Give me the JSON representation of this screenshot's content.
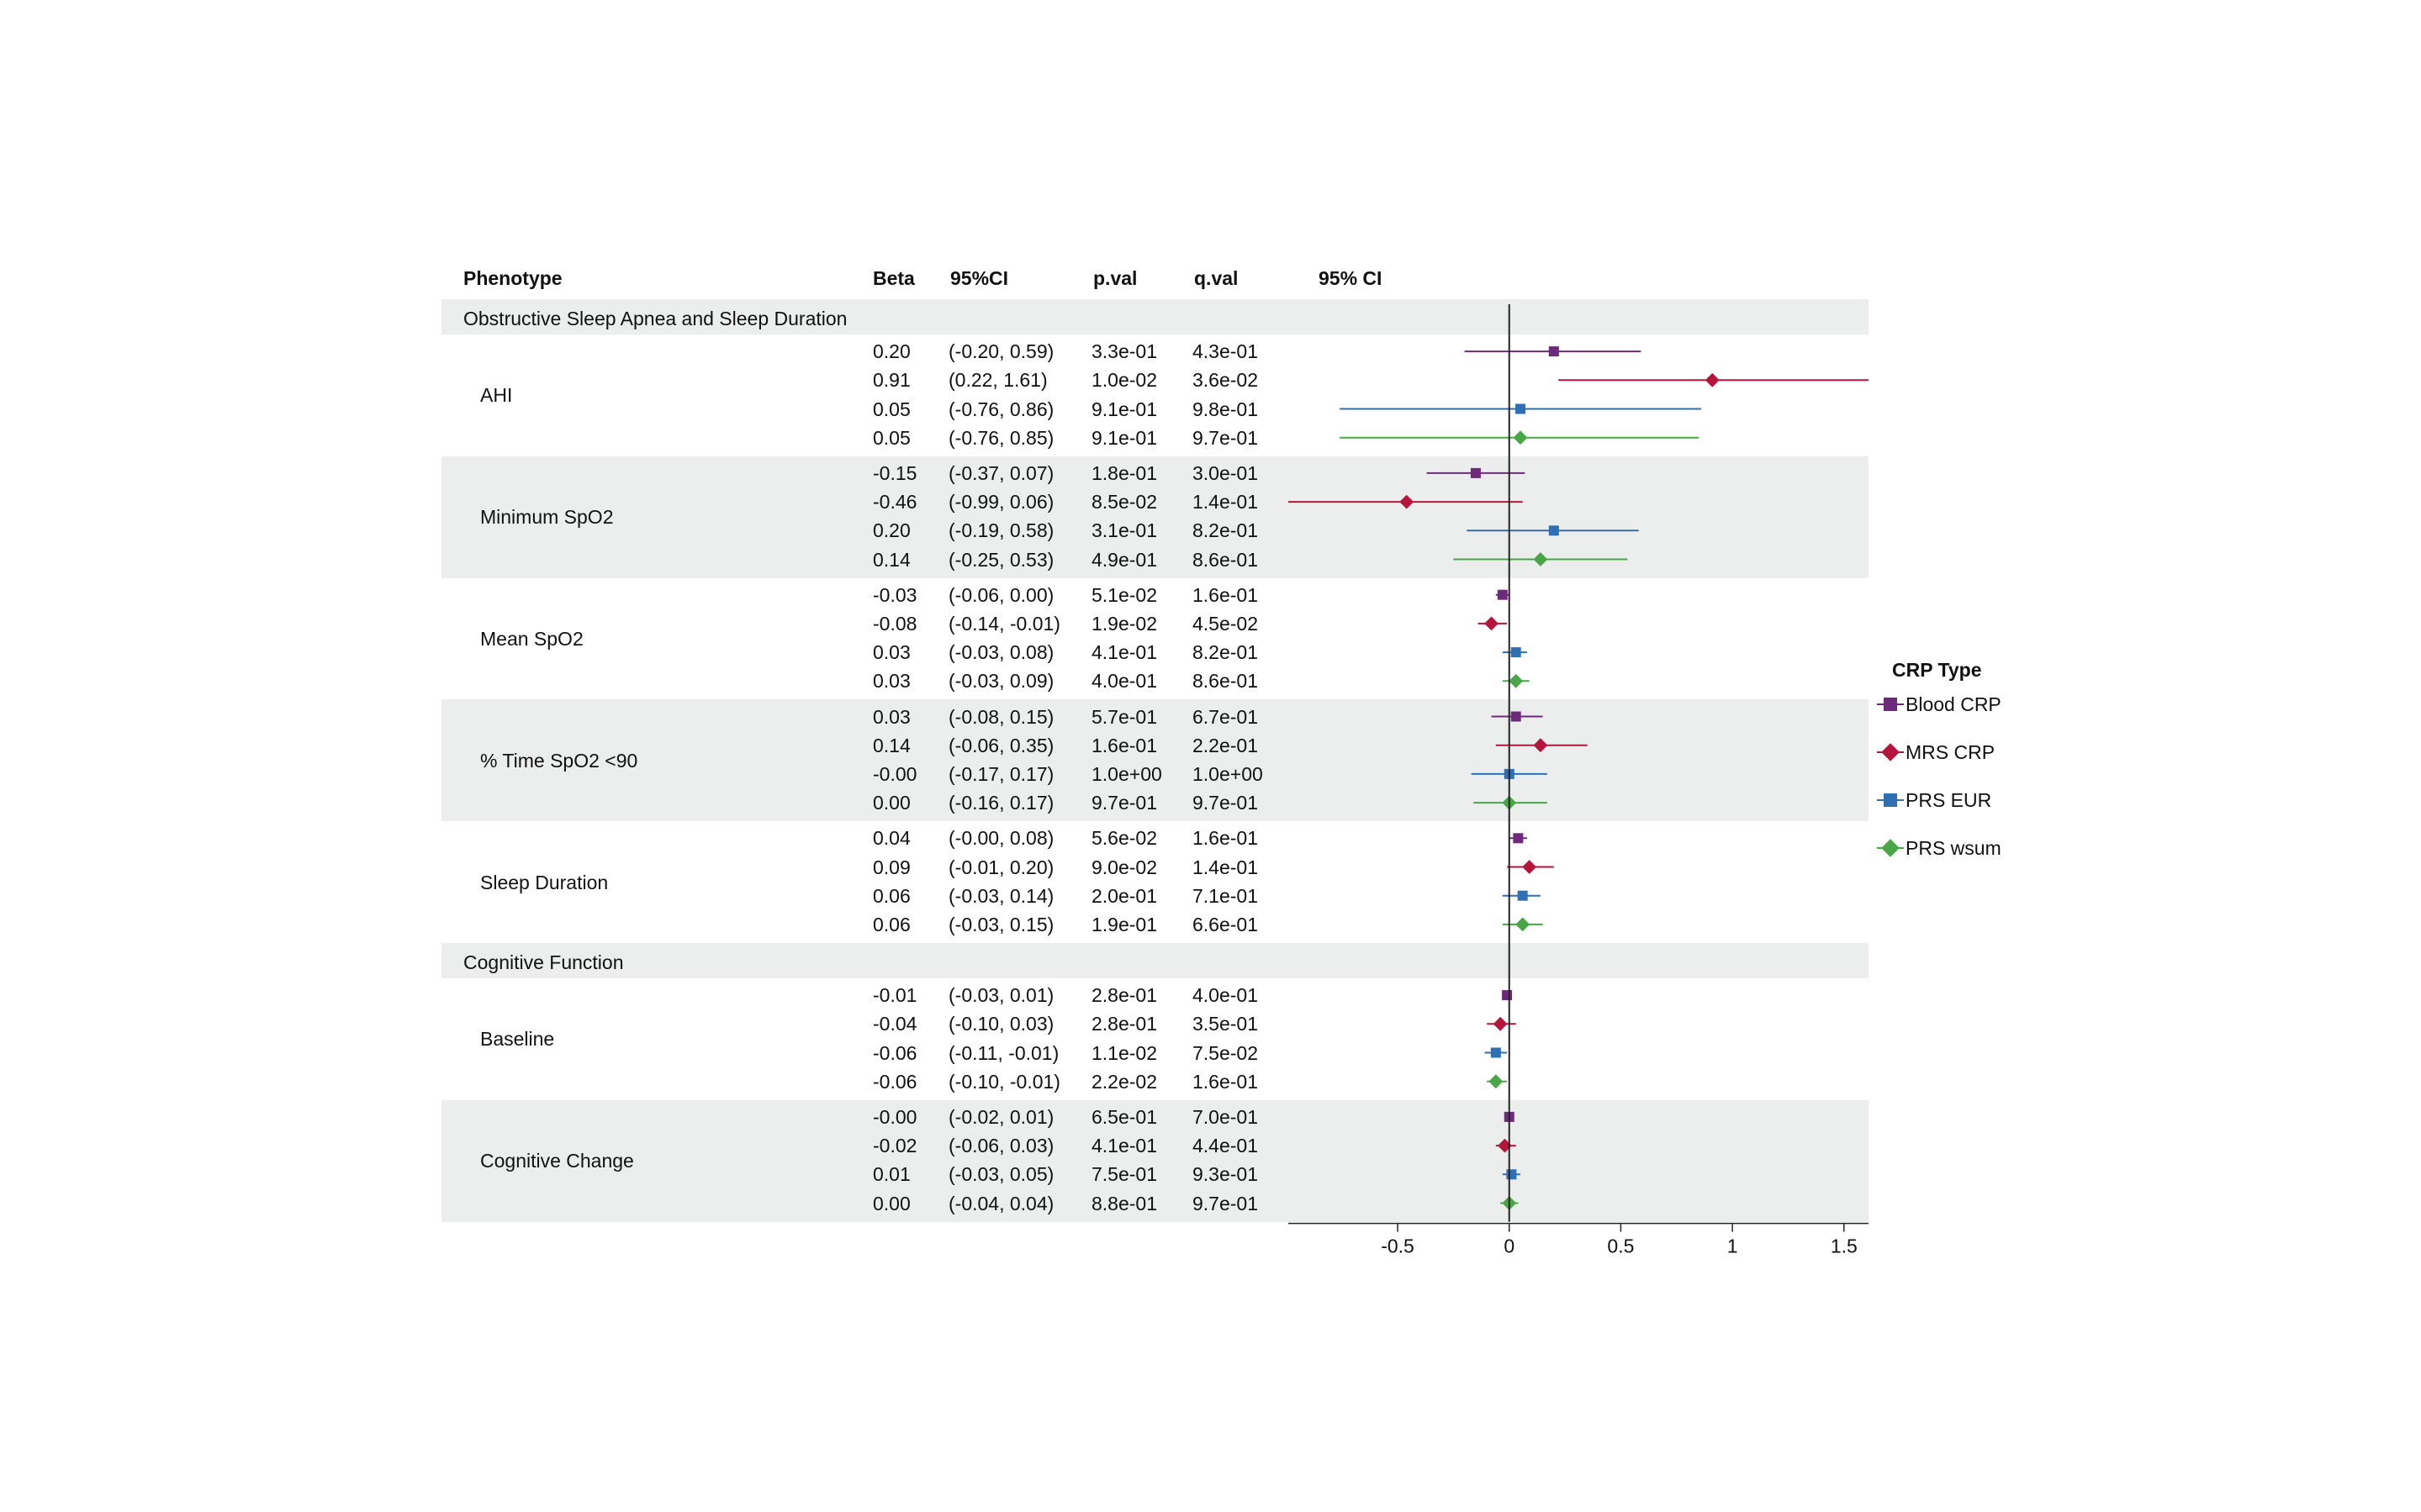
{
  "headers": {
    "phenotype": "Phenotype",
    "beta": "Beta",
    "ci": "95%CI",
    "pval": "p.val",
    "qval": "q.val",
    "plot": "95% CI"
  },
  "colors": {
    "band": "#eceeed",
    "Blood CRP": "#6e2a7a",
    "MRS CRP": "#b5143c",
    "PRS EUR": "#2f6fb3",
    "PRS wsum": "#4aa547"
  },
  "legend": {
    "title": "CRP Type",
    "items": [
      {
        "label": "Blood CRP",
        "marker": "square"
      },
      {
        "label": "MRS CRP",
        "marker": "diamond"
      },
      {
        "label": "PRS EUR",
        "marker": "square"
      },
      {
        "label": "PRS wsum",
        "marker": "diamond"
      }
    ]
  },
  "chart_data": {
    "type": "forest",
    "xlabel": "",
    "xlim": [
      -0.99,
      1.61
    ],
    "xticks": [
      "-0.5",
      "0",
      "0.5",
      "1",
      "1.5"
    ],
    "xtick_values": [
      -0.5,
      0,
      0.5,
      1,
      1.5
    ],
    "reference_line": 0,
    "sections": [
      {
        "title": "Obstructive Sleep Apnea and Sleep Duration",
        "groups": [
          {
            "name": "AHI",
            "rows": [
              {
                "type": "Blood CRP",
                "beta": "0.20",
                "ci": "(-0.20, 0.59)",
                "p": "3.3e-01",
                "q": "4.3e-01",
                "b": 0.2,
                "lo": -0.2,
                "hi": 0.59
              },
              {
                "type": "MRS CRP",
                "beta": "0.91",
                "ci": "(0.22, 1.61)",
                "p": "1.0e-02",
                "q": "3.6e-02",
                "b": 0.91,
                "lo": 0.22,
                "hi": 1.61
              },
              {
                "type": "PRS EUR",
                "beta": "0.05",
                "ci": "(-0.76, 0.86)",
                "p": "9.1e-01",
                "q": "9.8e-01",
                "b": 0.05,
                "lo": -0.76,
                "hi": 0.86
              },
              {
                "type": "PRS wsum",
                "beta": "0.05",
                "ci": "(-0.76, 0.85)",
                "p": "9.1e-01",
                "q": "9.7e-01",
                "b": 0.05,
                "lo": -0.76,
                "hi": 0.85
              }
            ]
          },
          {
            "name": "Minimum SpO2",
            "rows": [
              {
                "type": "Blood CRP",
                "beta": "-0.15",
                "ci": "(-0.37, 0.07)",
                "p": "1.8e-01",
                "q": "3.0e-01",
                "b": -0.15,
                "lo": -0.37,
                "hi": 0.07
              },
              {
                "type": "MRS CRP",
                "beta": "-0.46",
                "ci": "(-0.99, 0.06)",
                "p": "8.5e-02",
                "q": "1.4e-01",
                "b": -0.46,
                "lo": -0.99,
                "hi": 0.06
              },
              {
                "type": "PRS EUR",
                "beta": "0.20",
                "ci": "(-0.19, 0.58)",
                "p": "3.1e-01",
                "q": "8.2e-01",
                "b": 0.2,
                "lo": -0.19,
                "hi": 0.58
              },
              {
                "type": "PRS wsum",
                "beta": "0.14",
                "ci": "(-0.25, 0.53)",
                "p": "4.9e-01",
                "q": "8.6e-01",
                "b": 0.14,
                "lo": -0.25,
                "hi": 0.53
              }
            ]
          },
          {
            "name": "Mean SpO2",
            "rows": [
              {
                "type": "Blood CRP",
                "beta": "-0.03",
                "ci": "(-0.06, 0.00)",
                "p": "5.1e-02",
                "q": "1.6e-01",
                "b": -0.03,
                "lo": -0.06,
                "hi": 0.0
              },
              {
                "type": "MRS CRP",
                "beta": "-0.08",
                "ci": "(-0.14, -0.01)",
                "p": "1.9e-02",
                "q": "4.5e-02",
                "b": -0.08,
                "lo": -0.14,
                "hi": -0.01
              },
              {
                "type": "PRS EUR",
                "beta": "0.03",
                "ci": "(-0.03, 0.08)",
                "p": "4.1e-01",
                "q": "8.2e-01",
                "b": 0.03,
                "lo": -0.03,
                "hi": 0.08
              },
              {
                "type": "PRS wsum",
                "beta": "0.03",
                "ci": "(-0.03, 0.09)",
                "p": "4.0e-01",
                "q": "8.6e-01",
                "b": 0.03,
                "lo": -0.03,
                "hi": 0.09
              }
            ]
          },
          {
            "name": "% Time SpO2 <90",
            "rows": [
              {
                "type": "Blood CRP",
                "beta": "0.03",
                "ci": "(-0.08, 0.15)",
                "p": "5.7e-01",
                "q": "6.7e-01",
                "b": 0.03,
                "lo": -0.08,
                "hi": 0.15
              },
              {
                "type": "MRS CRP",
                "beta": "0.14",
                "ci": "(-0.06, 0.35)",
                "p": "1.6e-01",
                "q": "2.2e-01",
                "b": 0.14,
                "lo": -0.06,
                "hi": 0.35
              },
              {
                "type": "PRS EUR",
                "beta": "-0.00",
                "ci": "(-0.17, 0.17)",
                "p": "1.0e+00",
                "q": "1.0e+00",
                "b": 0.0,
                "lo": -0.17,
                "hi": 0.17
              },
              {
                "type": "PRS wsum",
                "beta": "0.00",
                "ci": "(-0.16, 0.17)",
                "p": "9.7e-01",
                "q": "9.7e-01",
                "b": 0.0,
                "lo": -0.16,
                "hi": 0.17
              }
            ]
          },
          {
            "name": "Sleep Duration",
            "rows": [
              {
                "type": "Blood CRP",
                "beta": "0.04",
                "ci": "(-0.00, 0.08)",
                "p": "5.6e-02",
                "q": "1.6e-01",
                "b": 0.04,
                "lo": 0.0,
                "hi": 0.08
              },
              {
                "type": "MRS CRP",
                "beta": "0.09",
                "ci": "(-0.01, 0.20)",
                "p": "9.0e-02",
                "q": "1.4e-01",
                "b": 0.09,
                "lo": -0.01,
                "hi": 0.2
              },
              {
                "type": "PRS EUR",
                "beta": "0.06",
                "ci": "(-0.03, 0.14)",
                "p": "2.0e-01",
                "q": "7.1e-01",
                "b": 0.06,
                "lo": -0.03,
                "hi": 0.14
              },
              {
                "type": "PRS wsum",
                "beta": "0.06",
                "ci": "(-0.03, 0.15)",
                "p": "1.9e-01",
                "q": "6.6e-01",
                "b": 0.06,
                "lo": -0.03,
                "hi": 0.15
              }
            ]
          }
        ]
      },
      {
        "title": "Cognitive Function",
        "groups": [
          {
            "name": "Baseline",
            "rows": [
              {
                "type": "Blood CRP",
                "beta": "-0.01",
                "ci": "(-0.03, 0.01)",
                "p": "2.8e-01",
                "q": "4.0e-01",
                "b": -0.01,
                "lo": -0.03,
                "hi": 0.01
              },
              {
                "type": "MRS CRP",
                "beta": "-0.04",
                "ci": "(-0.10, 0.03)",
                "p": "2.8e-01",
                "q": "3.5e-01",
                "b": -0.04,
                "lo": -0.1,
                "hi": 0.03
              },
              {
                "type": "PRS EUR",
                "beta": "-0.06",
                "ci": "(-0.11, -0.01)",
                "p": "1.1e-02",
                "q": "7.5e-02",
                "b": -0.06,
                "lo": -0.11,
                "hi": -0.01
              },
              {
                "type": "PRS wsum",
                "beta": "-0.06",
                "ci": "(-0.10, -0.01)",
                "p": "2.2e-02",
                "q": "1.6e-01",
                "b": -0.06,
                "lo": -0.1,
                "hi": -0.01
              }
            ]
          },
          {
            "name": "Cognitive Change",
            "rows": [
              {
                "type": "Blood CRP",
                "beta": "-0.00",
                "ci": "(-0.02, 0.01)",
                "p": "6.5e-01",
                "q": "7.0e-01",
                "b": 0.0,
                "lo": -0.02,
                "hi": 0.01
              },
              {
                "type": "MRS CRP",
                "beta": "-0.02",
                "ci": "(-0.06, 0.03)",
                "p": "4.1e-01",
                "q": "4.4e-01",
                "b": -0.02,
                "lo": -0.06,
                "hi": 0.03
              },
              {
                "type": "PRS EUR",
                "beta": "0.01",
                "ci": "(-0.03, 0.05)",
                "p": "7.5e-01",
                "q": "9.3e-01",
                "b": 0.01,
                "lo": -0.03,
                "hi": 0.05
              },
              {
                "type": "PRS wsum",
                "beta": "0.00",
                "ci": "(-0.04, 0.04)",
                "p": "8.8e-01",
                "q": "9.7e-01",
                "b": 0.0,
                "lo": -0.04,
                "hi": 0.04
              }
            ]
          }
        ]
      }
    ]
  }
}
